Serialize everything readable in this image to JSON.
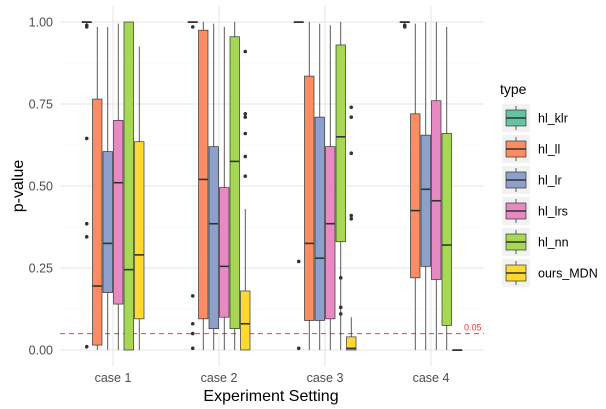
{
  "chart_data": {
    "type": "boxplot",
    "xlabel": "Experiment Setting",
    "ylabel": "p-value",
    "ylim": [
      -0.05,
      1.05
    ],
    "y_ticks": [
      "0.00",
      "0.25",
      "0.50",
      "0.75",
      "1.00"
    ],
    "y_tick_values": [
      0,
      0.25,
      0.5,
      0.75,
      1
    ],
    "categories": [
      "case 1",
      "case 2",
      "case 3",
      "case 4"
    ],
    "grid": "on",
    "legend": {
      "title": "type",
      "placement": "right",
      "entries": [
        "hl_klr",
        "hl_ll",
        "hl_lr",
        "hl_lrs",
        "hl_nn",
        "ours_MDN"
      ]
    },
    "reference_line": {
      "y": 0.05,
      "label": "0.05",
      "color": "#ff3333",
      "style": "dashed"
    },
    "series": [
      {
        "name": "hl_klr",
        "color": "#66c2a5",
        "boxes": [
          {
            "category": "case 1",
            "lower": 0.995,
            "q1": 0.998,
            "median": 1.0,
            "q3": 1.0,
            "upper": 1.0,
            "outliers": [
              0.99,
              0.985,
              0.645,
              0.385,
              0.345,
              0.01
            ]
          },
          {
            "category": "case 2",
            "lower": 0.998,
            "q1": 0.999,
            "median": 1.0,
            "q3": 1.0,
            "upper": 1.0,
            "outliers": [
              0.985,
              0.165,
              0.08,
              0.05,
              0.005
            ]
          },
          {
            "category": "case 3",
            "lower": 0.998,
            "q1": 0.999,
            "median": 1.0,
            "q3": 1.0,
            "upper": 1.0,
            "outliers": [
              0.27,
              0.005
            ]
          },
          {
            "category": "case 4",
            "lower": 0.995,
            "q1": 0.998,
            "median": 1.0,
            "q3": 1.0,
            "upper": 1.0,
            "outliers": [
              0.99,
              0.985
            ]
          }
        ]
      },
      {
        "name": "hl_ll",
        "color": "#fc8d62",
        "boxes": [
          {
            "category": "case 1",
            "lower": 0.0,
            "q1": 0.015,
            "median": 0.195,
            "q3": 0.765,
            "upper": 0.985,
            "outliers": []
          },
          {
            "category": "case 2",
            "lower": 0.0,
            "q1": 0.095,
            "median": 0.52,
            "q3": 0.975,
            "upper": 1.0,
            "outliers": []
          },
          {
            "category": "case 3",
            "lower": 0.0,
            "q1": 0.09,
            "median": 0.325,
            "q3": 0.835,
            "upper": 1.0,
            "outliers": []
          },
          {
            "category": "case 4",
            "lower": 0.0,
            "q1": 0.22,
            "median": 0.425,
            "q3": 0.72,
            "upper": 0.995,
            "outliers": []
          }
        ]
      },
      {
        "name": "hl_lr",
        "color": "#8da0cb",
        "boxes": [
          {
            "category": "case 1",
            "lower": 0.0,
            "q1": 0.175,
            "median": 0.325,
            "q3": 0.605,
            "upper": 0.985,
            "outliers": []
          },
          {
            "category": "case 2",
            "lower": 0.0,
            "q1": 0.065,
            "median": 0.385,
            "q3": 0.62,
            "upper": 0.995,
            "outliers": []
          },
          {
            "category": "case 3",
            "lower": 0.0,
            "q1": 0.09,
            "median": 0.28,
            "q3": 0.71,
            "upper": 0.995,
            "outliers": []
          },
          {
            "category": "case 4",
            "lower": 0.0,
            "q1": 0.255,
            "median": 0.49,
            "q3": 0.655,
            "upper": 1.0,
            "outliers": []
          }
        ]
      },
      {
        "name": "hl_lrs",
        "color": "#e78ac3",
        "boxes": [
          {
            "category": "case 1",
            "lower": 0.0,
            "q1": 0.14,
            "median": 0.51,
            "q3": 0.7,
            "upper": 0.995,
            "outliers": []
          },
          {
            "category": "case 2",
            "lower": 0.0,
            "q1": 0.1,
            "median": 0.255,
            "q3": 0.495,
            "upper": 0.985,
            "outliers": []
          },
          {
            "category": "case 3",
            "lower": 0.0,
            "q1": 0.095,
            "median": 0.385,
            "q3": 0.62,
            "upper": 0.99,
            "outliers": []
          },
          {
            "category": "case 4",
            "lower": 0.0,
            "q1": 0.215,
            "median": 0.455,
            "q3": 0.76,
            "upper": 1.0,
            "outliers": []
          }
        ]
      },
      {
        "name": "hl_nn",
        "color": "#a6d854",
        "boxes": [
          {
            "category": "case 1",
            "lower": 0.0,
            "q1": 0.0,
            "median": 0.245,
            "q3": 1.0,
            "upper": 1.0,
            "outliers": []
          },
          {
            "category": "case 2",
            "lower": 0.0,
            "q1": 0.065,
            "median": 0.575,
            "q3": 0.955,
            "upper": 1.0,
            "outliers": []
          },
          {
            "category": "case 3",
            "lower": 0.0,
            "q1": 0.33,
            "median": 0.65,
            "q3": 0.93,
            "upper": 1.0,
            "outliers": [
              0.22,
              0.13,
              0.11
            ]
          },
          {
            "category": "case 4",
            "lower": 0.0,
            "q1": 0.075,
            "median": 0.32,
            "q3": 0.66,
            "upper": 0.985,
            "outliers": []
          }
        ]
      },
      {
        "name": "ours_MDN",
        "color": "#ffd92f",
        "boxes": [
          {
            "category": "case 1",
            "lower": 0.0,
            "q1": 0.095,
            "median": 0.29,
            "q3": 0.635,
            "upper": 0.925,
            "outliers": []
          },
          {
            "category": "case 2",
            "lower": 0.0,
            "q1": 0.0,
            "median": 0.08,
            "q3": 0.18,
            "upper": 0.43,
            "outliers": [
              0.91,
              0.72,
              0.71,
              0.66,
              0.59,
              0.53
            ]
          },
          {
            "category": "case 3",
            "lower": 0.0,
            "q1": 0.0,
            "median": 0.005,
            "q3": 0.04,
            "upper": 0.1,
            "outliers": [
              0.74,
              0.71,
              0.6,
              0.41,
              0.4
            ]
          },
          {
            "category": "case 4",
            "lower": 0.0,
            "q1": 0.0,
            "median": 0.0,
            "q3": 0.0,
            "upper": 0.0,
            "outliers": []
          }
        ]
      }
    ]
  }
}
